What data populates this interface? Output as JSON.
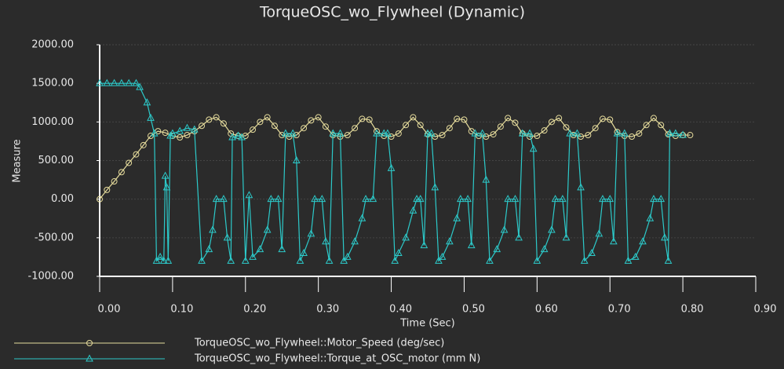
{
  "chart_data": {
    "type": "line",
    "title": "TorqueOSC_wo_Flywheel (Dynamic)",
    "x_label": "Time (Sec)",
    "y_label": "Measure",
    "xlim": [
      0,
      0.9
    ],
    "ylim": [
      -1000,
      2000
    ],
    "grid": true,
    "legend": "bottom",
    "xticks": [
      {
        "value": 0,
        "label": "0.00"
      },
      {
        "value": 0.1,
        "label": "0.10"
      },
      {
        "value": 0.2,
        "label": "0.20"
      },
      {
        "value": 0.3,
        "label": "0.30"
      },
      {
        "value": 0.4,
        "label": "0.40"
      },
      {
        "value": 0.5,
        "label": "0.50"
      },
      {
        "value": 0.6,
        "label": "0.60"
      },
      {
        "value": 0.7,
        "label": "0.70"
      },
      {
        "value": 0.8,
        "label": "0.80"
      },
      {
        "value": 0.9,
        "label": "0.90"
      }
    ],
    "yticks": [
      {
        "value": -1000,
        "label": "-1000.00"
      },
      {
        "value": -500,
        "label": "-500.00"
      },
      {
        "value": 0,
        "label": "0.00"
      },
      {
        "value": 500,
        "label": "500.00"
      },
      {
        "value": 1000,
        "label": "1000.00"
      },
      {
        "value": 1500,
        "label": "1500.00"
      },
      {
        "value": 2000,
        "label": "2000.00"
      }
    ],
    "series": [
      {
        "name": "TorqueOSC_wo_Flywheel::Motor_Speed (deg/sec)",
        "color": "#e6dc9c",
        "marker": "circle",
        "x": [
          0,
          0.01,
          0.02,
          0.03,
          0.04,
          0.05,
          0.06,
          0.07,
          0.08,
          0.09,
          0.1,
          0.11,
          0.12,
          0.13,
          0.14,
          0.15,
          0.16,
          0.17,
          0.18,
          0.19,
          0.2,
          0.21,
          0.22,
          0.23,
          0.24,
          0.25,
          0.26,
          0.27,
          0.28,
          0.29,
          0.3,
          0.31,
          0.32,
          0.33,
          0.34,
          0.35,
          0.36,
          0.37,
          0.38,
          0.39,
          0.4,
          0.41,
          0.42,
          0.43,
          0.44,
          0.45,
          0.46,
          0.47,
          0.48,
          0.49,
          0.5,
          0.51,
          0.52,
          0.53,
          0.54,
          0.55,
          0.56,
          0.57,
          0.58,
          0.59,
          0.6,
          0.61,
          0.62,
          0.63,
          0.64,
          0.65,
          0.66,
          0.67,
          0.68,
          0.69,
          0.7,
          0.71,
          0.72,
          0.73,
          0.74,
          0.75,
          0.76,
          0.77,
          0.78,
          0.79,
          0.8,
          0.81
        ],
        "values": [
          0,
          120,
          230,
          350,
          470,
          580,
          700,
          820,
          880,
          860,
          820,
          800,
          830,
          880,
          950,
          1030,
          1060,
          980,
          850,
          820,
          820,
          900,
          1000,
          1060,
          950,
          830,
          810,
          830,
          920,
          1020,
          1060,
          940,
          830,
          810,
          830,
          920,
          1040,
          1030,
          880,
          820,
          810,
          850,
          960,
          1060,
          960,
          840,
          810,
          830,
          920,
          1040,
          1030,
          880,
          820,
          810,
          840,
          940,
          1050,
          990,
          850,
          810,
          820,
          890,
          1000,
          1050,
          930,
          830,
          810,
          830,
          920,
          1040,
          1030,
          870,
          820,
          810,
          850,
          960,
          1050,
          960,
          840,
          820,
          830,
          830
        ]
      },
      {
        "name": "TorqueOSC_wo_Flywheel::Torque_at_OSC_motor (mm N)",
        "color": "#2ccaca",
        "marker": "triangle",
        "x": [
          0,
          0.01,
          0.02,
          0.03,
          0.04,
          0.05,
          0.055,
          0.065,
          0.07,
          0.075,
          0.078,
          0.083,
          0.088,
          0.09,
          0.092,
          0.094,
          0.097,
          0.1,
          0.11,
          0.12,
          0.13,
          0.14,
          0.15,
          0.155,
          0.16,
          0.17,
          0.175,
          0.18,
          0.182,
          0.19,
          0.195,
          0.2,
          0.205,
          0.21,
          0.22,
          0.23,
          0.235,
          0.245,
          0.25,
          0.255,
          0.265,
          0.27,
          0.275,
          0.28,
          0.29,
          0.295,
          0.305,
          0.31,
          0.315,
          0.32,
          0.33,
          0.335,
          0.34,
          0.35,
          0.36,
          0.365,
          0.375,
          0.38,
          0.39,
          0.395,
          0.4,
          0.405,
          0.41,
          0.42,
          0.43,
          0.435,
          0.44,
          0.445,
          0.45,
          0.455,
          0.46,
          0.465,
          0.47,
          0.48,
          0.49,
          0.495,
          0.505,
          0.51,
          0.515,
          0.525,
          0.53,
          0.535,
          0.545,
          0.555,
          0.56,
          0.57,
          0.575,
          0.58,
          0.59,
          0.595,
          0.6,
          0.61,
          0.62,
          0.625,
          0.635,
          0.64,
          0.645,
          0.655,
          0.66,
          0.665,
          0.675,
          0.685,
          0.69,
          0.7,
          0.705,
          0.71,
          0.72,
          0.725,
          0.735,
          0.745,
          0.755,
          0.76,
          0.77,
          0.775,
          0.78,
          0.782,
          0.79,
          0.8
        ],
        "values": [
          1500,
          1500,
          1500,
          1500,
          1500,
          1500,
          1450,
          1250,
          1050,
          850,
          -800,
          -750,
          -800,
          300,
          150,
          -800,
          820,
          850,
          880,
          920,
          900,
          -800,
          -650,
          -400,
          0,
          0,
          -500,
          -800,
          800,
          820,
          800,
          -800,
          50,
          -750,
          -650,
          -400,
          0,
          0,
          -650,
          850,
          850,
          500,
          -800,
          -700,
          -450,
          0,
          0,
          -550,
          -800,
          850,
          850,
          -800,
          -750,
          -550,
          -250,
          0,
          0,
          850,
          850,
          850,
          400,
          -800,
          -700,
          -500,
          -150,
          0,
          0,
          -600,
          850,
          850,
          150,
          -800,
          -750,
          -550,
          -250,
          0,
          0,
          -600,
          850,
          850,
          250,
          -800,
          -650,
          -400,
          0,
          0,
          -500,
          850,
          850,
          650,
          -800,
          -650,
          -400,
          0,
          0,
          -500,
          850,
          850,
          150,
          -800,
          -700,
          -450,
          0,
          0,
          -550,
          850,
          850,
          -800,
          -750,
          -550,
          -250,
          0,
          0,
          -500,
          -800,
          850,
          850,
          830
        ]
      }
    ]
  }
}
